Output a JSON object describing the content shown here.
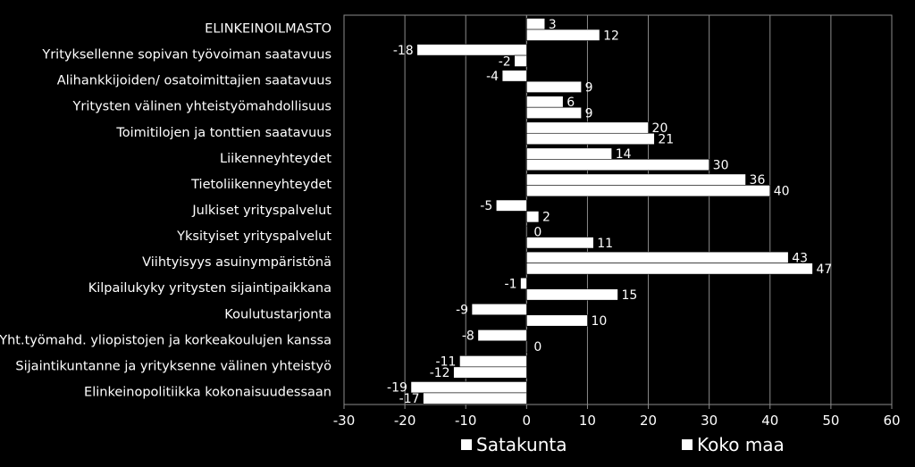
{
  "chart_data": {
    "type": "bar",
    "orientation": "horizontal",
    "categories": [
      "ELINKEINOILMASTO",
      "Yrityksellenne sopivan työvoiman saatavuus",
      "Alihankkijoiden/ osatoimittajien saatavuus",
      "Yritysten välinen yhteistyömahdollisuus",
      "Toimitilojen ja tonttien saatavuus",
      "Liikenneyhteydet",
      "Tietoliikenneyhteydet",
      "Julkiset yrityspalvelut",
      "Yksityiset yrityspalvelut",
      "Viihtyisyys asuinympäristönä",
      "Kilpailukyky yritysten sijaintipaikkana",
      "Koulutustarjonta",
      "Yht.työmahd. yliopistojen ja korkeakoulujen kanssa",
      "Sijaintikuntanne ja yrityksenne välinen yhteistyö",
      "Elinkeinopolitiikka kokonaisuudessaan"
    ],
    "series": [
      {
        "name": "Satakunta",
        "values": [
          3,
          -18,
          -4,
          6,
          20,
          14,
          36,
          -5,
          0,
          43,
          -1,
          -9,
          -8,
          -11,
          -19
        ]
      },
      {
        "name": "Koko maa",
        "values": [
          12,
          -2,
          9,
          9,
          21,
          30,
          40,
          2,
          11,
          47,
          15,
          10,
          0,
          -12,
          -17
        ]
      }
    ],
    "xlim": [
      -30,
      60
    ],
    "xticks": [
      "-30",
      "-20",
      "-10",
      "0",
      "10",
      "20",
      "30",
      "40",
      "50",
      "60"
    ],
    "grid": true,
    "legend": "bottom",
    "colors": {
      "background": "#000000",
      "bar": "#ffffff",
      "text": "#ffffff",
      "grid": "#8c8c8c"
    }
  }
}
